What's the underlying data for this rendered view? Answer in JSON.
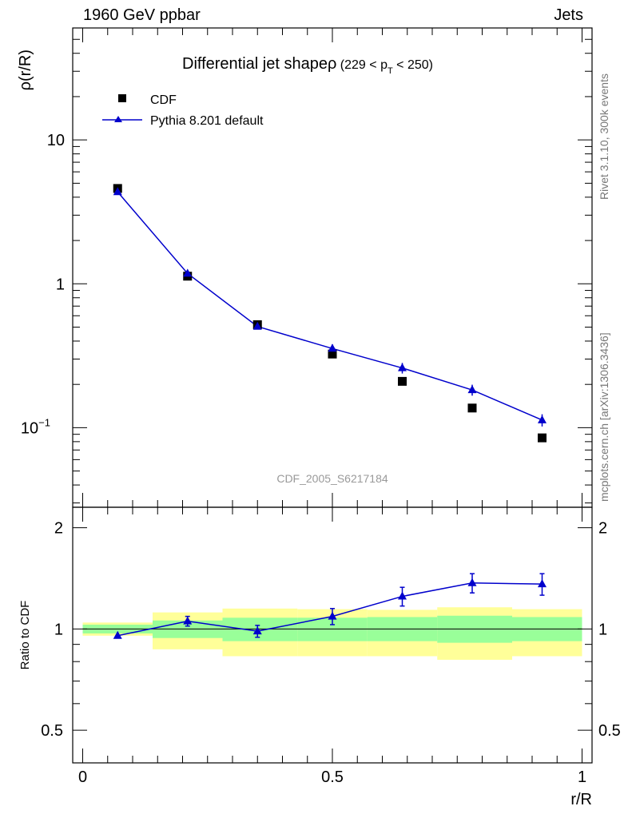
{
  "header": {
    "left": "1960 GeV ppbar",
    "right": "Jets"
  },
  "side": {
    "rivet": "Rivet 3.1.10,  300k events",
    "mcplots": "mcplots.cern.ch [arXiv:1306.3436]"
  },
  "chart_data": [
    {
      "type": "scatter",
      "title": "Differential jet shape",
      "title_symbol": "ρ",
      "title_range": "(229 < p",
      "title_sub": "T",
      "title_range_end": " < 250)",
      "ylabel": "ρ(r/R)",
      "yscale": "log",
      "ylim": [
        0.028,
        60
      ],
      "xlim": [
        -0.02,
        1.02
      ],
      "y_ticks": [
        {
          "v": 0.1,
          "label": "10",
          "exp": "−1"
        },
        {
          "v": 1,
          "label": "1",
          "exp": ""
        },
        {
          "v": 10,
          "label": "10",
          "exp": ""
        }
      ],
      "watermark": "CDF_2005_S6217184",
      "legend_position": "top-left",
      "x": [
        0.07,
        0.21,
        0.35,
        0.5,
        0.64,
        0.78,
        0.92
      ],
      "series": [
        {
          "name": "CDF",
          "marker": "square",
          "color": "#000000",
          "values": [
            4.6,
            1.13,
            0.52,
            0.325,
            0.21,
            0.137,
            0.085
          ]
        },
        {
          "name": "Pythia 8.201 default",
          "marker": "triangle",
          "color": "#0000cc",
          "values": [
            4.35,
            1.18,
            0.505,
            0.355,
            0.26,
            0.183,
            0.113
          ],
          "err": [
            0.06,
            0.025,
            0.012,
            0.025,
            0.022,
            0.016,
            0.011
          ]
        }
      ]
    },
    {
      "type": "line",
      "ylabel": "Ratio to CDF",
      "xlabel": "r/R",
      "yscale": "log",
      "ylim": [
        0.4,
        2.3
      ],
      "xlim": [
        -0.02,
        1.02
      ],
      "y_ticks": [
        0.5,
        1,
        2
      ],
      "x_ticks": [
        0,
        0.5,
        1
      ],
      "x_tick_labels": [
        "0",
        "0.5",
        "1"
      ],
      "reference": 1,
      "bands": [
        {
          "x0": 0.0,
          "x1": 0.14,
          "inner": [
            0.97,
            1.03
          ],
          "outer": [
            0.955,
            1.045
          ]
        },
        {
          "x0": 0.14,
          "x1": 0.28,
          "inner": [
            0.94,
            1.06
          ],
          "outer": [
            0.87,
            1.12
          ]
        },
        {
          "x0": 0.28,
          "x1": 0.43,
          "inner": [
            0.92,
            1.08
          ],
          "outer": [
            0.83,
            1.15
          ]
        },
        {
          "x0": 0.43,
          "x1": 0.57,
          "inner": [
            0.92,
            1.08
          ],
          "outer": [
            0.83,
            1.145
          ]
        },
        {
          "x0": 0.57,
          "x1": 0.71,
          "inner": [
            0.92,
            1.085
          ],
          "outer": [
            0.83,
            1.14
          ]
        },
        {
          "x0": 0.71,
          "x1": 0.86,
          "inner": [
            0.91,
            1.095
          ],
          "outer": [
            0.81,
            1.16
          ]
        },
        {
          "x0": 0.86,
          "x1": 1.0,
          "inner": [
            0.92,
            1.085
          ],
          "outer": [
            0.83,
            1.145
          ]
        }
      ],
      "band_colors": {
        "outer": "#ffff99",
        "inner": "#99ff99"
      },
      "x": [
        0.07,
        0.21,
        0.35,
        0.5,
        0.64,
        0.78,
        0.92
      ],
      "series": [
        {
          "name": "Pythia 8.201 default",
          "color": "#0000cc",
          "values": [
            0.955,
            1.055,
            0.985,
            1.09,
            1.25,
            1.37,
            1.36
          ],
          "err": [
            0.0,
            0.035,
            0.04,
            0.06,
            0.08,
            0.09,
            0.1
          ]
        }
      ]
    }
  ]
}
